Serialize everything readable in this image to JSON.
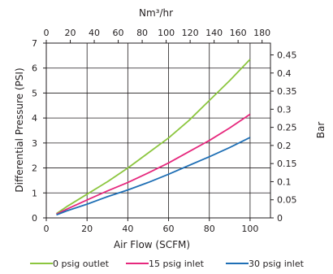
{
  "chart_data": {
    "type": "line",
    "xlabel": "Air Flow (SCFM)",
    "ylabel": "Differential Pressure (PSI)",
    "x2label": "Nm³/hr",
    "y2label": "Bar",
    "xlim": [
      0,
      110
    ],
    "ylim": [
      0,
      7
    ],
    "x2lim": [
      0,
      187
    ],
    "y2lim": [
      0,
      0.4826
    ],
    "xticks": [
      0,
      20,
      40,
      60,
      80,
      100
    ],
    "yticks": [
      0,
      1,
      2,
      3,
      4,
      5,
      6,
      7
    ],
    "x2ticks": [
      0,
      20,
      40,
      60,
      80,
      100,
      120,
      140,
      160,
      180
    ],
    "y2ticks": [
      0,
      0.05,
      0.1,
      0.15,
      0.2,
      0.25,
      0.3,
      0.35,
      0.4,
      0.45
    ],
    "grid": true,
    "legend_position": "bottom",
    "series": [
      {
        "name": "0 psig outlet",
        "color": "#8cc63f",
        "x": [
          5,
          10,
          20,
          30,
          40,
          50,
          60,
          70,
          80,
          90,
          100
        ],
        "y": [
          0.17,
          0.45,
          0.95,
          1.45,
          2.0,
          2.6,
          3.2,
          3.9,
          4.7,
          5.5,
          6.35
        ]
      },
      {
        "name": "15 psig inlet",
        "color": "#e6287d",
        "x": [
          5,
          10,
          20,
          30,
          40,
          50,
          60,
          70,
          80,
          90,
          100
        ],
        "y": [
          0.15,
          0.35,
          0.72,
          1.08,
          1.42,
          1.8,
          2.2,
          2.65,
          3.1,
          3.6,
          4.15
        ]
      },
      {
        "name": "30 psig inlet",
        "color": "#1f6fb5",
        "x": [
          5,
          10,
          20,
          30,
          40,
          50,
          60,
          70,
          80,
          90,
          100
        ],
        "y": [
          0.12,
          0.28,
          0.55,
          0.85,
          1.12,
          1.42,
          1.75,
          2.1,
          2.45,
          2.82,
          3.22
        ]
      }
    ]
  }
}
